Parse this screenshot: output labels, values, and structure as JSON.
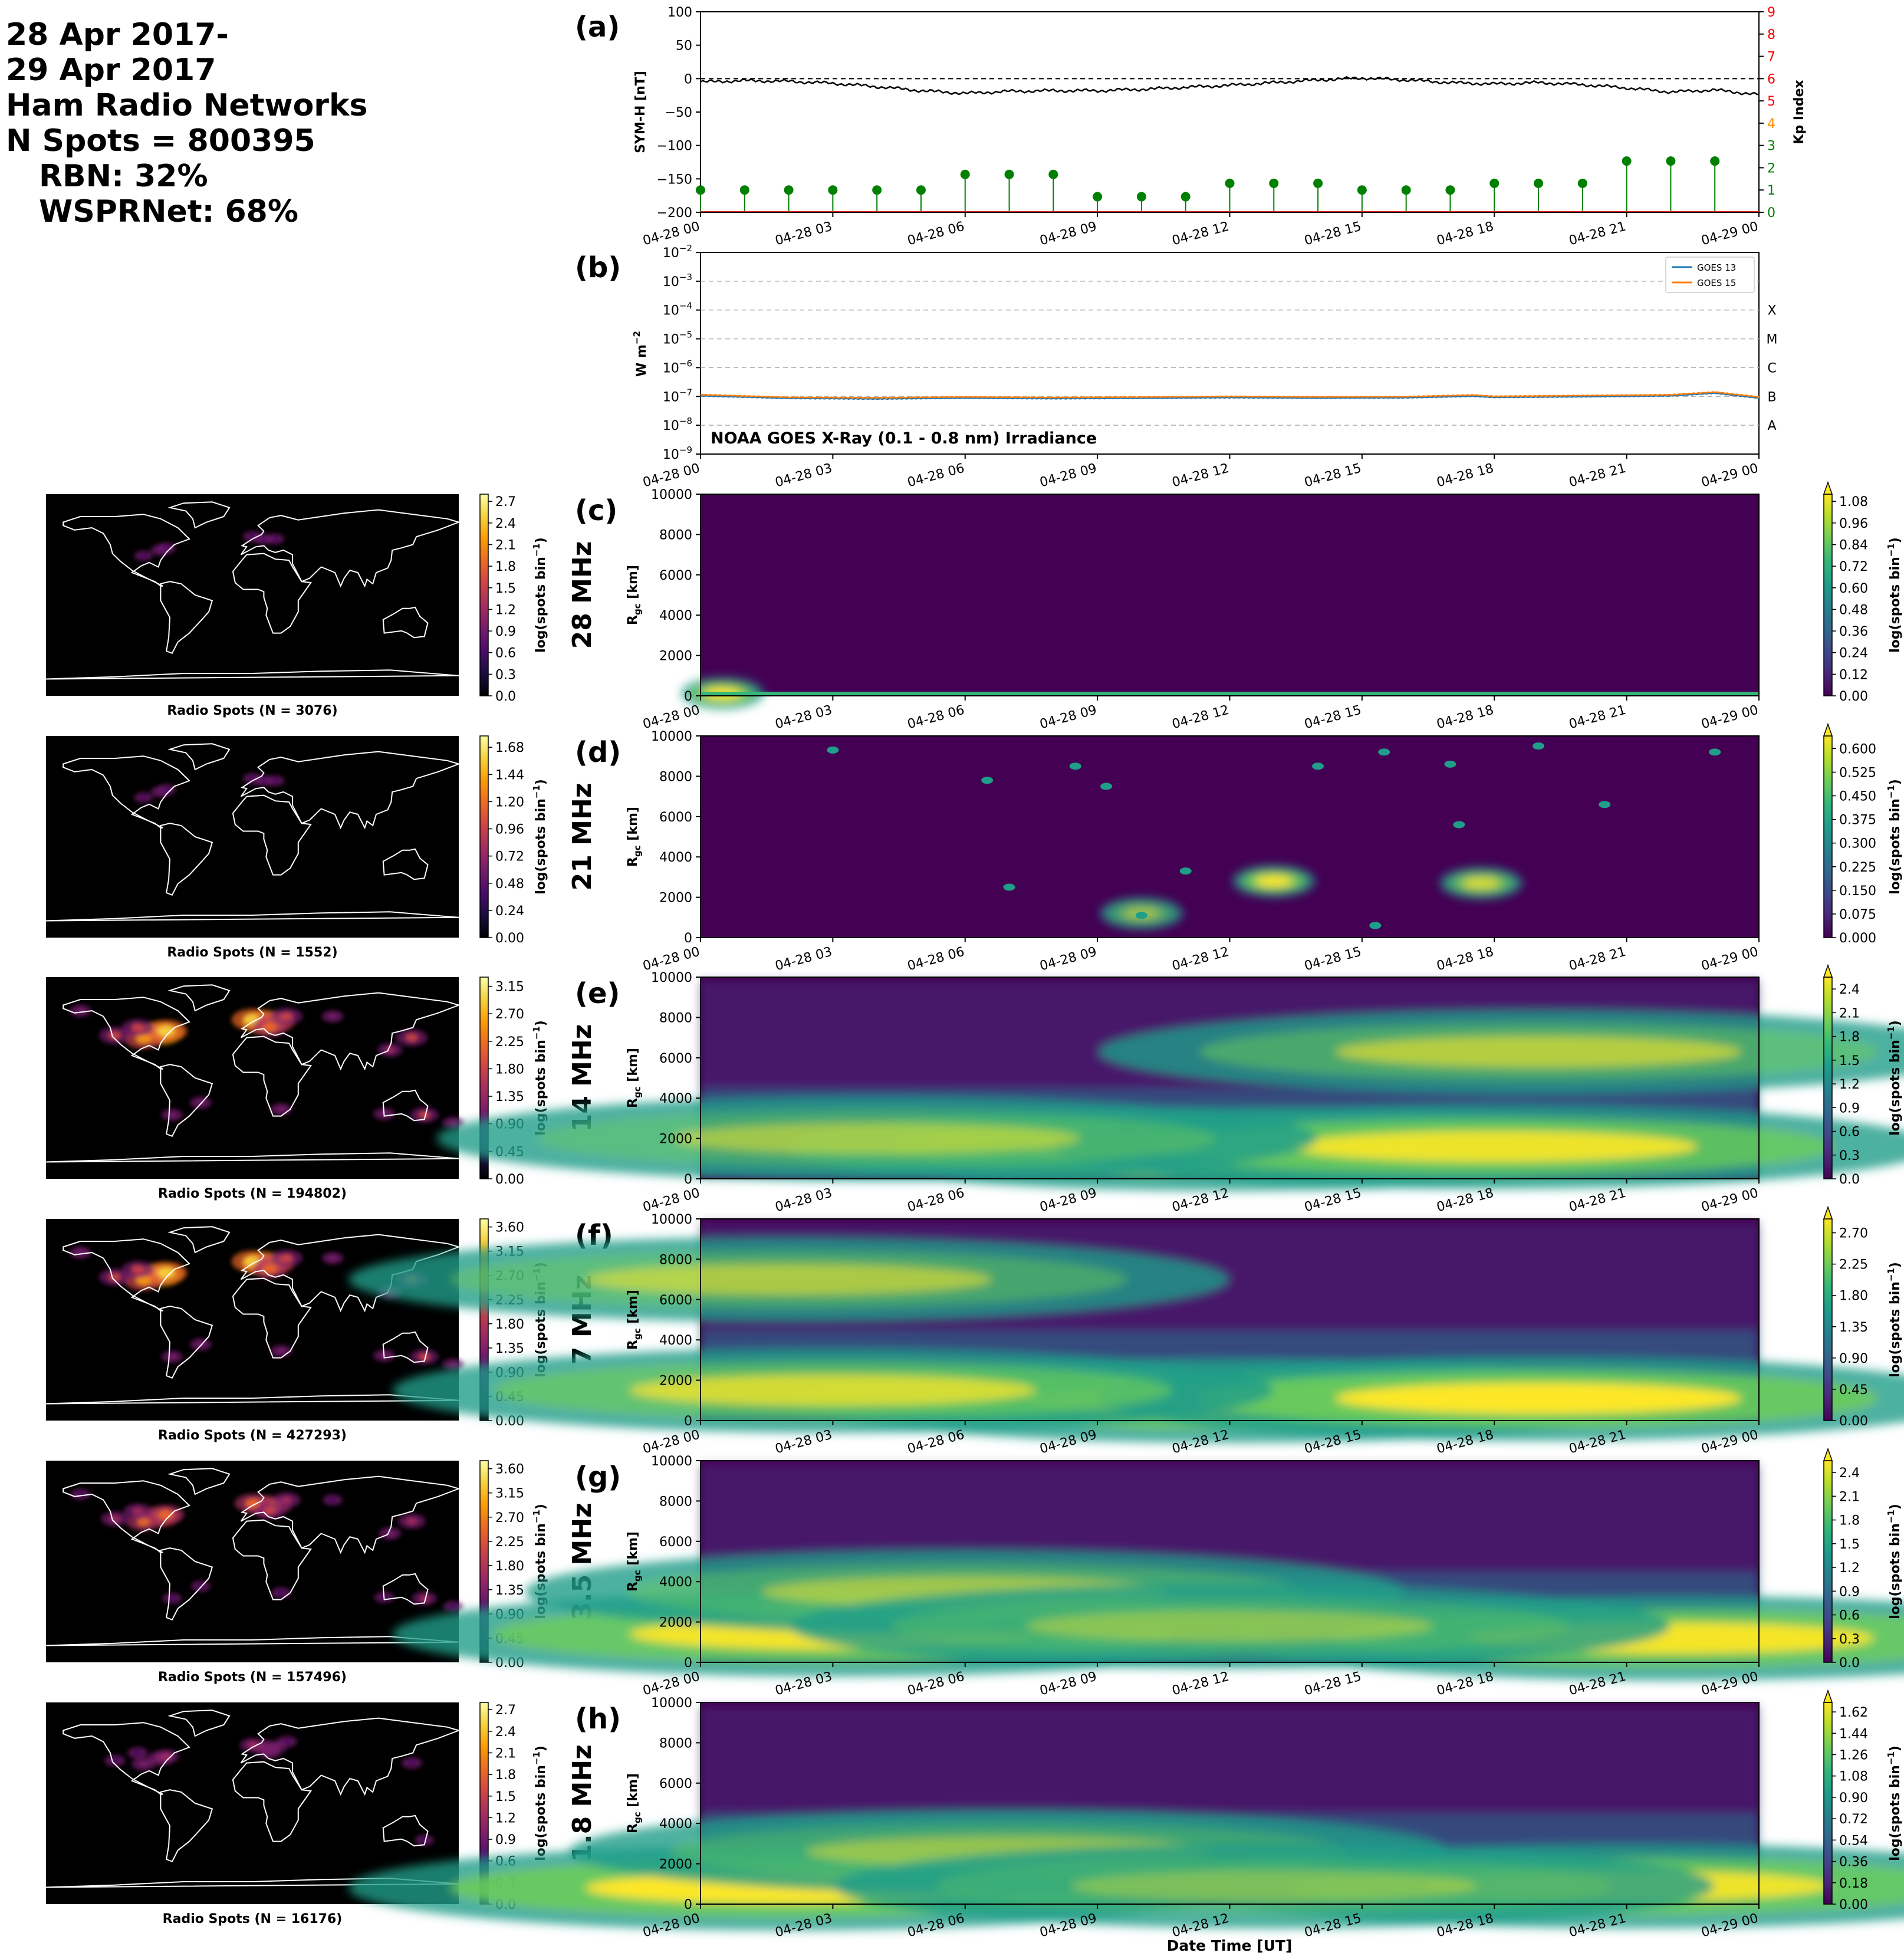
{
  "header": {
    "lines": [
      "28 Apr 2017-",
      "29 Apr 2017",
      "Ham Radio Networks",
      "N Spots = 800395"
    ],
    "sub_lines": [
      "RBN: 32%",
      "WSPRNet: 68%"
    ]
  },
  "time_ticks": [
    "04-28 00",
    "04-28 03",
    "04-28 06",
    "04-28 09",
    "04-28 12",
    "04-28 15",
    "04-28 18",
    "04-28 21",
    "04-29 00"
  ],
  "xlabel": "Date Time [UT]",
  "chart_data": [
    {
      "type": "line",
      "panel_label": "(a)",
      "ylabel": "SYM-H [nT]",
      "ylim": [
        -200,
        100
      ],
      "yticks": [
        "100",
        "50",
        "0",
        "−50",
        "−100",
        "−150",
        "−200"
      ],
      "x_hours": [
        0,
        1,
        2,
        3,
        4,
        5,
        6,
        7,
        8,
        9,
        10,
        11,
        12,
        13,
        14,
        15,
        16,
        17,
        18,
        19,
        20,
        21,
        22,
        23,
        24
      ],
      "symh": [
        -5,
        -3,
        -4,
        -7,
        -12,
        -18,
        -22,
        -19,
        -18,
        -18,
        -16,
        -13,
        -10,
        -6,
        -2,
        1,
        -2,
        -6,
        -8,
        -6,
        -9,
        -14,
        -20,
        -17,
        -24
      ],
      "kp_ylabel": "Kp Index",
      "kp_ylim": [
        0,
        9
      ],
      "kp_yticks": [
        "0",
        "1",
        "2",
        "3",
        "4",
        "5",
        "6",
        "7",
        "8",
        "9"
      ],
      "kp_tick_colors": [
        "#008000",
        "#008000",
        "#008000",
        "#008000",
        "#ff8c00",
        "#ff0000",
        "#ff0000",
        "#ff0000",
        "#ff0000",
        "#ff0000"
      ],
      "kp_hours": [
        0,
        1,
        2,
        3,
        4,
        5,
        6,
        7,
        8,
        9,
        10,
        11,
        12,
        13,
        14,
        15,
        16,
        17,
        18,
        19,
        20,
        21,
        22,
        23
      ],
      "kp": [
        1.0,
        1.0,
        1.0,
        1.0,
        1.0,
        1.0,
        1.7,
        1.7,
        1.7,
        0.7,
        0.7,
        0.7,
        1.3,
        1.3,
        1.3,
        1.0,
        1.0,
        1.0,
        1.3,
        1.3,
        1.3,
        2.3,
        2.3,
        2.3
      ],
      "colors": {
        "symh": "#000000",
        "kp": "#008000"
      }
    },
    {
      "type": "line",
      "panel_label": "(b)",
      "ylabel": "W m",
      "ylabel_sup": "−2",
      "yscale": "log",
      "ylim_exp": [
        -9,
        -2
      ],
      "flare_classes": [
        "X",
        "M",
        "C",
        "B",
        "A"
      ],
      "annotation": "NOAA GOES X-Ray (0.1 - 0.8 nm) Irradiance",
      "series": [
        {
          "name": "GOES 13",
          "color": "#1f77b4",
          "x_hours": [
            0,
            2,
            4,
            6,
            8,
            10,
            12,
            14,
            16,
            17.5,
            18,
            20,
            22,
            23,
            24
          ],
          "values": [
            1.05e-07,
            8.6e-08,
            8.2e-08,
            8.8e-08,
            8.4e-08,
            8.7e-08,
            9.1e-08,
            8.8e-08,
            9e-08,
            1.02e-07,
            9.3e-08,
            9.8e-08,
            1.05e-07,
            1.3e-07,
            8.8e-08
          ]
        },
        {
          "name": "GOES 15",
          "color": "#ff7f0e",
          "x_hours": [
            0,
            2,
            4,
            6,
            8,
            10,
            12,
            14,
            16,
            17.5,
            18,
            20,
            22,
            23,
            24
          ],
          "values": [
            1.15e-07,
            9.3e-08,
            9e-08,
            9.6e-08,
            9.2e-08,
            9.5e-08,
            1e-07,
            9.6e-08,
            9.8e-08,
            1.12e-07,
            1.01e-07,
            1.07e-07,
            1.14e-07,
            1.42e-07,
            9.6e-08
          ]
        }
      ]
    }
  ],
  "bands": [
    {
      "panel_label": "(c)",
      "band": "28 MHz",
      "map_title": "Radio Spots (N = 3076)",
      "map_ticks": [
        "0.0",
        "0.3",
        "0.6",
        "0.9",
        "1.2",
        "1.5",
        "1.8",
        "2.1",
        "2.4",
        "2.7"
      ],
      "map_max": 2.8,
      "cb_ticks": [
        "0.00",
        "0.12",
        "0.24",
        "0.36",
        "0.48",
        "0.60",
        "0.72",
        "0.84",
        "0.96",
        "1.08"
      ],
      "cb_max": 1.12,
      "profile": "p28"
    },
    {
      "panel_label": "(d)",
      "band": "21 MHz",
      "map_title": "Radio Spots (N = 1552)",
      "map_ticks": [
        "0.00",
        "0.24",
        "0.48",
        "0.72",
        "0.96",
        "1.20",
        "1.44",
        "1.68"
      ],
      "map_max": 1.78,
      "cb_ticks": [
        "0.000",
        "0.075",
        "0.150",
        "0.225",
        "0.300",
        "0.375",
        "0.450",
        "0.525",
        "0.600"
      ],
      "cb_max": 0.64,
      "profile": "p21"
    },
    {
      "panel_label": "(e)",
      "band": "14 MHz",
      "map_title": "Radio Spots (N = 194802)",
      "map_ticks": [
        "0.00",
        "0.45",
        "0.90",
        "1.35",
        "1.80",
        "2.25",
        "2.70",
        "3.15"
      ],
      "map_max": 3.3,
      "cb_ticks": [
        "0.0",
        "0.3",
        "0.6",
        "0.9",
        "1.2",
        "1.5",
        "1.8",
        "2.1",
        "2.4"
      ],
      "cb_max": 2.55,
      "profile": "p14"
    },
    {
      "panel_label": "(f)",
      "band": "7 MHz",
      "map_title": "Radio Spots (N = 427293)",
      "map_ticks": [
        "0.00",
        "0.45",
        "0.90",
        "1.35",
        "1.80",
        "2.25",
        "2.70",
        "3.15",
        "3.60"
      ],
      "map_max": 3.75,
      "cb_ticks": [
        "0.00",
        "0.45",
        "0.90",
        "1.35",
        "1.80",
        "2.25",
        "2.70"
      ],
      "cb_max": 2.9,
      "profile": "p7"
    },
    {
      "panel_label": "(g)",
      "band": "3.5 MHz",
      "map_title": "Radio Spots (N = 157496)",
      "map_ticks": [
        "0.00",
        "0.45",
        "0.90",
        "1.35",
        "1.80",
        "2.25",
        "2.70",
        "3.15",
        "3.60"
      ],
      "map_max": 3.75,
      "cb_ticks": [
        "0.0",
        "0.3",
        "0.6",
        "0.9",
        "1.2",
        "1.5",
        "1.8",
        "2.1",
        "2.4"
      ],
      "cb_max": 2.55,
      "profile": "p35"
    },
    {
      "panel_label": "(h)",
      "band": "1.8 MHz",
      "map_title": "Radio Spots (N = 16176)",
      "map_ticks": [
        "0.0",
        "0.3",
        "0.6",
        "0.9",
        "1.2",
        "1.5",
        "1.8",
        "2.1",
        "2.4",
        "2.7"
      ],
      "map_max": 2.8,
      "cb_ticks": [
        "0.00",
        "0.18",
        "0.36",
        "0.54",
        "0.72",
        "0.90",
        "1.08",
        "1.26",
        "1.44",
        "1.62"
      ],
      "cb_max": 1.7,
      "profile": "p18"
    }
  ],
  "rgc_label": "R",
  "rgc_sub": "gc",
  "rgc_unit": " [km]",
  "rgc_ticks": [
    "0",
    "2000",
    "4000",
    "6000",
    "8000",
    "10000"
  ],
  "cb_label": "log(spots bin",
  "cb_label_sup": "−1",
  "cb_label_end": ")",
  "colors": {
    "viridis": [
      "#440154",
      "#482878",
      "#3e4a89",
      "#31688e",
      "#26828e",
      "#1f9e89",
      "#35b779",
      "#6ece58",
      "#b5de2b",
      "#fde725"
    ],
    "inferno": [
      "#000004",
      "#1b0c41",
      "#4a0c6b",
      "#781c6d",
      "#a52c60",
      "#cf4446",
      "#ed6925",
      "#fb9b06",
      "#f7d13d",
      "#fcffa4"
    ],
    "map_background": "#000000",
    "coastline": "#ffffff",
    "grid": "#b0b0b0"
  }
}
